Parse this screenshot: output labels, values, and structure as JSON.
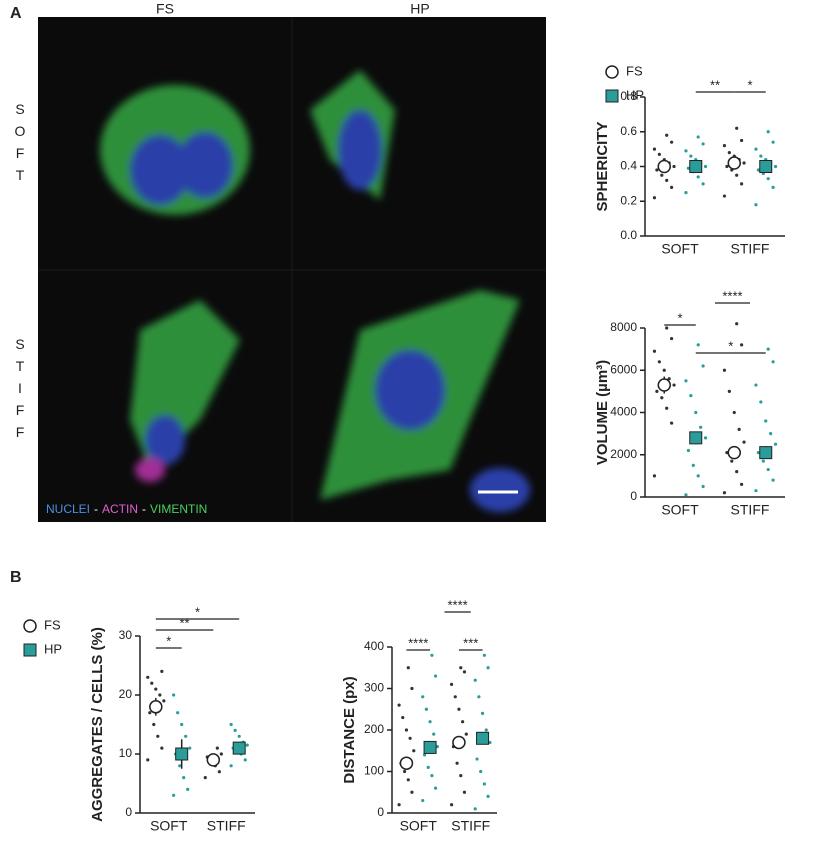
{
  "panel_labels": [
    "A",
    "B"
  ],
  "image": {
    "columns": [
      "FS",
      "HP"
    ],
    "rows": [
      "SOFT",
      "STIFF"
    ],
    "stain": [
      "NUCLEI",
      "ACTIN",
      "VIMENTIN"
    ],
    "separator": "-"
  },
  "chart_data": [
    {
      "type": "dot",
      "y_label": "SPHERICITY",
      "categories": [
        "SOFT",
        "STIFF"
      ],
      "ylim": [
        0,
        0.8
      ],
      "yticks": [
        {
          "value": 0,
          "label": "0.0"
        },
        0.2,
        0.4,
        0.6,
        0.8
      ],
      "legend": "right",
      "annotations": [
        "**",
        "*"
      ],
      "series": [
        {
          "name": "FS",
          "color": "#333333",
          "values": [
            0.4,
            0.42
          ],
          "errors": [
            0.02,
            0.02
          ],
          "points": [
            [
              0.22,
              0.28,
              0.32,
              0.35,
              0.38,
              0.4,
              0.42,
              0.44,
              0.47,
              0.5,
              0.54,
              0.58
            ],
            [
              0.23,
              0.3,
              0.35,
              0.38,
              0.4,
              0.42,
              0.44,
              0.46,
              0.48,
              0.52,
              0.55,
              0.62
            ]
          ]
        },
        {
          "name": "HP",
          "color": "#2a9d9a",
          "values": [
            0.4,
            0.4
          ],
          "errors": [
            0.02,
            0.02
          ],
          "points": [
            [
              0.25,
              0.3,
              0.34,
              0.37,
              0.39,
              0.4,
              0.42,
              0.44,
              0.46,
              0.49,
              0.53,
              0.57
            ],
            [
              0.18,
              0.28,
              0.33,
              0.36,
              0.38,
              0.4,
              0.42,
              0.44,
              0.46,
              0.5,
              0.54,
              0.6
            ]
          ]
        }
      ]
    },
    {
      "type": "dot",
      "y_label": "VOLUME (µm³)",
      "categories": [
        "SOFT",
        "STIFF"
      ],
      "ylim": [
        0,
        8000
      ],
      "yticks": [
        0,
        2000,
        4000,
        6000,
        8000
      ],
      "legend": false,
      "annotations": [
        "*",
        "****",
        "*"
      ],
      "series": [
        {
          "name": "FS",
          "color": "#333333",
          "values": [
            5300,
            2100
          ],
          "errors": [
            400,
            300
          ],
          "points": [
            [
              1000,
              3500,
              4200,
              4700,
              5000,
              5300,
              5600,
              6000,
              6400,
              6900,
              7500,
              8000
            ],
            [
              200,
              600,
              1200,
              1700,
              2100,
              2600,
              3200,
              4000,
              5000,
              6000,
              7200,
              8200
            ]
          ]
        },
        {
          "name": "HP",
          "color": "#2a9d9a",
          "values": [
            2800,
            2100
          ],
          "errors": [
            300,
            300
          ],
          "points": [
            [
              100,
              500,
              1000,
              1500,
              2200,
              2800,
              3300,
              4000,
              4800,
              5500,
              6200,
              7200
            ],
            [
              300,
              800,
              1300,
              1700,
              2100,
              2500,
              3000,
              3600,
              4500,
              5300,
              6400,
              7000
            ]
          ]
        }
      ]
    },
    {
      "type": "dot",
      "y_label": "AGGREGATES / CELLS (%)",
      "categories": [
        "SOFT",
        "STIFF"
      ],
      "ylim": [
        0,
        30
      ],
      "yticks": [
        0,
        10,
        20,
        30
      ],
      "legend": "left",
      "annotations": [
        "*",
        "**",
        "*"
      ],
      "series": [
        {
          "name": "FS",
          "color": "#333333",
          "values": [
            18,
            9
          ],
          "errors": [
            1.5,
            1
          ],
          "points": [
            [
              9,
              11,
              13,
              15,
              17,
              19,
              20,
              21,
              22,
              23,
              24
            ],
            [
              6,
              7,
              8,
              9,
              9.5,
              10,
              11
            ]
          ]
        },
        {
          "name": "HP",
          "color": "#2a9d9a",
          "values": [
            10,
            11
          ],
          "errors": [
            2.5,
            1
          ],
          "points": [
            [
              3,
              4,
              6,
              8,
              10,
              11,
              13,
              15,
              17,
              20
            ],
            [
              8,
              9,
              10,
              10.5,
              11,
              11.5,
              12,
              13,
              14,
              15
            ]
          ]
        }
      ]
    },
    {
      "type": "dot",
      "y_label": "DISTANCE  (px)",
      "categories": [
        "SOFT",
        "STIFF"
      ],
      "ylim": [
        0,
        400
      ],
      "yticks": [
        0,
        100,
        200,
        300,
        400
      ],
      "legend": false,
      "annotations": [
        "****",
        "****",
        "***"
      ],
      "series": [
        {
          "name": "FS",
          "color": "#333333",
          "values": [
            120,
            170
          ],
          "errors": [
            10,
            12
          ],
          "points": [
            [
              20,
              50,
              80,
              100,
              120,
              150,
              180,
              200,
              230,
              260,
              300,
              350
            ],
            [
              20,
              50,
              90,
              120,
              160,
              190,
              220,
              250,
              280,
              310,
              340,
              350
            ]
          ]
        },
        {
          "name": "HP",
          "color": "#2a9d9a",
          "values": [
            158,
            180
          ],
          "errors": [
            10,
            12
          ],
          "points": [
            [
              30,
              60,
              90,
              110,
              140,
              160,
              190,
              220,
              250,
              280,
              330,
              380
            ],
            [
              10,
              40,
              70,
              100,
              130,
              170,
              200,
              240,
              280,
              320,
              350,
              380
            ]
          ]
        }
      ]
    }
  ]
}
